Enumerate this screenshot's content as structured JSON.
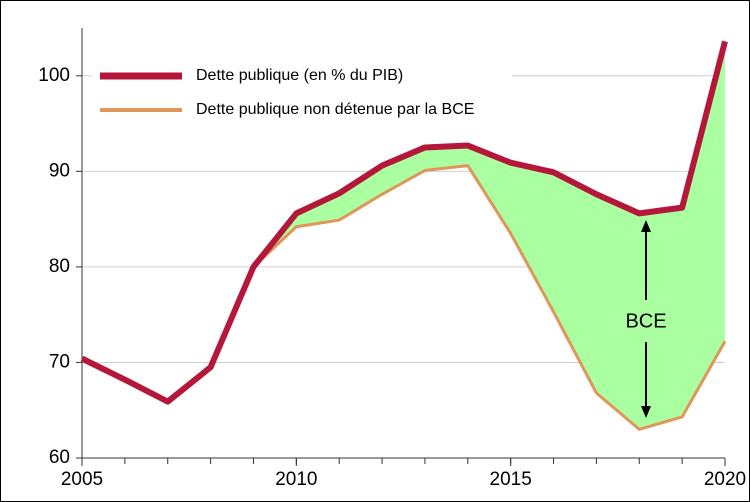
{
  "chart_data": {
    "type": "line",
    "x": [
      2005,
      2006,
      2007,
      2008,
      2009,
      2010,
      2011,
      2012,
      2013,
      2014,
      2015,
      2016,
      2017,
      2018,
      2019,
      2020
    ],
    "series": [
      {
        "name": "Dette publique (en % du PIB)",
        "color": "#b5173a",
        "values": [
          70.4,
          68.2,
          65.9,
          69.5,
          80.0,
          85.6,
          87.7,
          90.6,
          92.5,
          92.7,
          90.9,
          89.9,
          87.6,
          85.6,
          86.2,
          103.6
        ]
      },
      {
        "name": "Dette publique non détenue par la BCE",
        "color": "#e0955a",
        "values": [
          70.4,
          68.2,
          65.9,
          69.5,
          80.0,
          84.2,
          84.9,
          87.6,
          90.1,
          90.6,
          83.5,
          75.3,
          66.8,
          63.0,
          64.3,
          72.2
        ]
      }
    ],
    "fill_color": "#aaffa0",
    "annotation": "BCE",
    "xlim": [
      2005,
      2020
    ],
    "xticks": [
      2005,
      2010,
      2015,
      2020
    ],
    "ylim": [
      60,
      105
    ],
    "yticks": [
      60,
      70,
      80,
      90,
      100
    ],
    "grid": true,
    "legend": "upper left"
  }
}
